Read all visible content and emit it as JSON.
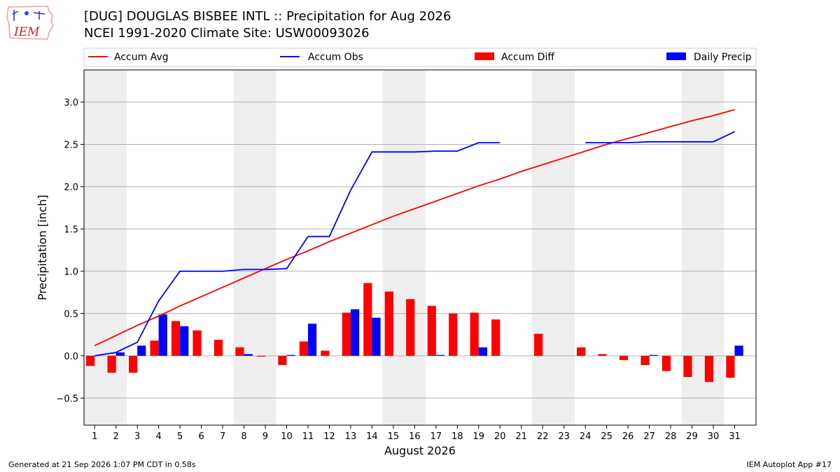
{
  "header": {
    "title_line1": "[DUG] DOUGLAS BISBEE INTL :: Precipitation for Aug 2026",
    "title_line2": "NCEI 1991-2020 Climate Site: USW00093026",
    "logo_text": "IEM"
  },
  "footer": {
    "generated": "Generated at 21 Sep 2026 1:07 PM CDT in 0.58s",
    "app": "IEM Autoplot App #17"
  },
  "colors": {
    "accum_avg": "#ff0000",
    "accum_obs": "#0000ff",
    "accum_diff": "#ff0000",
    "daily_precip": "#0000ff",
    "weekend_shade": "#eeeeee",
    "grid": "#b0b0b0"
  },
  "chart_data": {
    "type": "bar",
    "xlabel": "August 2026",
    "ylabel": "Precipitation [inch]",
    "ylim": [
      -0.82,
      3.38
    ],
    "yticks": [
      -0.5,
      0.0,
      0.5,
      1.0,
      1.5,
      2.0,
      2.5,
      3.0
    ],
    "ytick_labels": [
      "−0.5",
      "0.0",
      "0.5",
      "1.0",
      "1.5",
      "2.0",
      "2.5",
      "3.0"
    ],
    "grid": "horizontal",
    "legend_placement": "top",
    "x": [
      1,
      2,
      3,
      4,
      5,
      6,
      7,
      8,
      9,
      10,
      11,
      12,
      13,
      14,
      15,
      16,
      17,
      18,
      19,
      20,
      21,
      22,
      23,
      24,
      25,
      26,
      27,
      28,
      29,
      30,
      31
    ],
    "weekend_spans": [
      [
        1,
        2
      ],
      [
        8,
        9
      ],
      [
        15,
        16
      ],
      [
        22,
        23
      ],
      [
        29,
        30
      ]
    ],
    "series": [
      {
        "name": "Accum Avg",
        "kind": "line",
        "values": [
          0.12,
          0.24,
          0.36,
          0.47,
          0.59,
          0.7,
          0.81,
          0.92,
          1.03,
          1.14,
          1.24,
          1.35,
          1.45,
          1.55,
          1.65,
          1.74,
          1.83,
          1.92,
          2.01,
          2.09,
          2.18,
          2.26,
          2.34,
          2.42,
          2.5,
          2.57,
          2.64,
          2.71,
          2.78,
          2.84,
          2.91
        ]
      },
      {
        "name": "Accum Obs",
        "kind": "line",
        "values": [
          0.0,
          0.04,
          0.16,
          0.65,
          1.0,
          1.0,
          1.0,
          1.02,
          1.02,
          1.03,
          1.41,
          1.41,
          1.96,
          2.41,
          2.41,
          2.41,
          2.42,
          2.42,
          2.52,
          2.52,
          null,
          null,
          null,
          2.52,
          2.52,
          2.52,
          2.53,
          2.53,
          2.53,
          2.53,
          2.65
        ]
      },
      {
        "name": "Accum Diff",
        "kind": "bar",
        "values": [
          -0.12,
          -0.2,
          -0.2,
          0.18,
          0.41,
          0.3,
          0.19,
          0.1,
          -0.01,
          -0.11,
          0.17,
          0.06,
          0.51,
          0.86,
          0.76,
          0.67,
          0.59,
          0.5,
          0.51,
          0.43,
          null,
          0.26,
          null,
          0.1,
          0.02,
          -0.05,
          -0.11,
          -0.18,
          -0.25,
          -0.31,
          -0.26
        ]
      },
      {
        "name": "Daily Precip",
        "kind": "bar",
        "values": [
          0.0,
          0.04,
          0.12,
          0.49,
          0.35,
          0.0,
          0.0,
          0.02,
          0.0,
          0.01,
          0.38,
          0.0,
          0.55,
          0.45,
          0.0,
          0.0,
          0.01,
          0.0,
          0.1,
          0.0,
          null,
          null,
          null,
          0.0,
          0.0,
          0.0,
          0.01,
          0.0,
          0.0,
          0.0,
          0.12
        ]
      }
    ]
  }
}
